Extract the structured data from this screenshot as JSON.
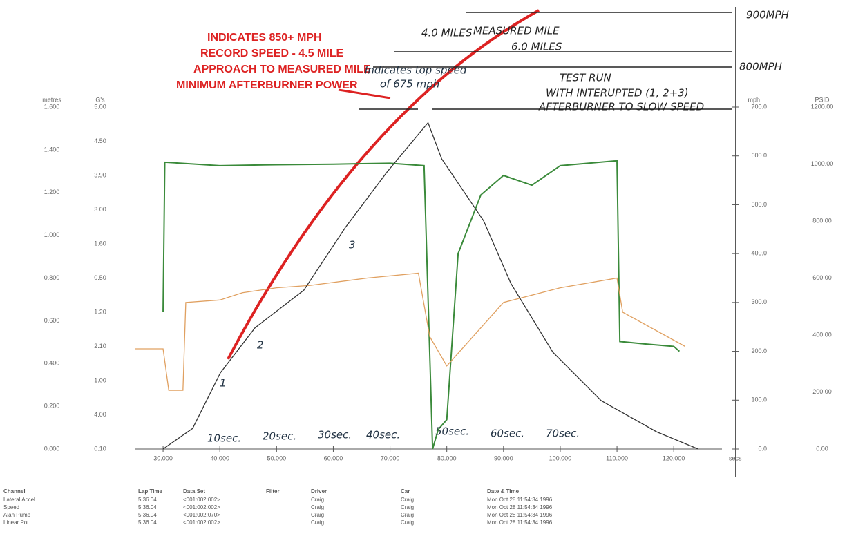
{
  "chart_data": {
    "type": "line",
    "xlim": [
      25,
      128.5
    ],
    "xticks": [
      {
        "value": 30,
        "label": "30.000"
      },
      {
        "value": 40,
        "label": "40.000"
      },
      {
        "value": 50,
        "label": "50.000"
      },
      {
        "value": 60,
        "label": "60.000"
      },
      {
        "value": 70,
        "label": "70.000"
      },
      {
        "value": 80,
        "label": "80.000"
      },
      {
        "value": 90,
        "label": "90.000"
      },
      {
        "value": 100,
        "label": "100.000"
      },
      {
        "value": 110,
        "label": "110.000"
      },
      {
        "value": 120,
        "label": "120.000"
      }
    ],
    "xlabel": "secs",
    "ylabel": "mph",
    "ylim": [
      0,
      700
    ],
    "yticks": [
      {
        "value": 0,
        "label": "0.0"
      },
      {
        "value": 100,
        "label": "100.0"
      },
      {
        "value": 200,
        "label": "200.0"
      },
      {
        "value": 300,
        "label": "300.0"
      },
      {
        "value": 400,
        "label": "400.0"
      },
      {
        "value": 500,
        "label": "500.0"
      },
      {
        "value": 600,
        "label": "600.0"
      },
      {
        "value": 700,
        "label": "700.0"
      }
    ],
    "extra_axes": [
      {
        "title": "metres",
        "labels": [
          "1.600",
          "1.400",
          "1.200",
          "1.000",
          "0.800",
          "0.600",
          "0.400",
          "0.200",
          "0.000"
        ]
      },
      {
        "title": "G's",
        "labels": [
          "5.00",
          "4.50",
          "3.90",
          "3.00",
          "1.60",
          "0.50",
          "1.20",
          "2.10",
          "1.00",
          "4.00",
          "0.10"
        ]
      },
      {
        "title": "PSID",
        "labels": [
          "1200.00",
          "1000.00",
          "800.00",
          "600.00",
          "400.00",
          "200.00",
          "0.00"
        ]
      }
    ],
    "series": [
      {
        "color": "#3a8a3a",
        "x": [
          30,
          30.3,
          40,
          50,
          60,
          70,
          76,
          77.5,
          78.5,
          80,
          82,
          86,
          90,
          95,
          100,
          110,
          110.5,
          115,
          120,
          121
        ],
        "values": [
          280,
          587,
          580,
          582,
          583,
          585,
          580,
          0,
          40,
          60,
          400,
          520,
          560,
          540,
          580,
          590,
          220,
          215,
          210,
          200
        ]
      },
      {
        "color": "#e0a060",
        "x": [
          25,
          29,
          30,
          31,
          33.5,
          34,
          40,
          44,
          50,
          56,
          66,
          75,
          77,
          80,
          90,
          100,
          110,
          111,
          122
        ],
        "values": [
          205,
          205,
          205,
          120,
          120,
          300,
          305,
          320,
          330,
          335,
          350,
          360,
          230,
          170,
          300,
          330,
          350,
          280,
          210
        ]
      },
      {
        "color": "#333",
        "x": [
          30,
          35.2,
          40.1,
          46.2,
          54.8,
          62.1,
          69.4,
          76.7,
          79.1,
          86.5,
          91.3,
          98.7,
          107.2,
          117,
          124.3
        ],
        "values": [
          0,
          42,
          156,
          248,
          325,
          453,
          566,
          668,
          594,
          467,
          339,
          198,
          99,
          35,
          0
        ]
      }
    ],
    "annotations": [
      "INDICATES 850+ MPH",
      "RECORD SPEED - 4.5 MILE",
      "APPROACH TO MEASURED MILE",
      "MINIMUM AFTERBURNER POWER",
      "Indicates top speed",
      "of 675 mph",
      "TEST RUN",
      "WITH INTERUPTED (1, 2+3)",
      "AFTERBURNER TO SLOW SPEED",
      "4.0 MILES",
      "MEASURED MILE",
      "6.0 MILES",
      "900MPH",
      "800MPH",
      "10sec.",
      "20sec.",
      "30sec.",
      "40sec.",
      "50sec.",
      "60sec.",
      "70sec.",
      "1",
      "2",
      "3"
    ]
  },
  "table": {
    "header": [
      "Channel",
      "Lap Time",
      "Data Set",
      "Filter",
      "Driver",
      "Car",
      "Date & Time"
    ],
    "rows": [
      [
        "Lateral Accel",
        "5:36.04",
        "<001:002:002>",
        "",
        "Craig",
        "Craig",
        "Mon Oct 28 11:54:34 1996"
      ],
      [
        "Speed",
        "5:36.04",
        "<001:002:002>",
        "",
        "Craig",
        "Craig",
        "Mon Oct 28 11:54:34 1996"
      ],
      [
        "Alan Pump",
        "5:36.04",
        "<001:002:070>",
        "",
        "Craig",
        "Craig",
        "Mon Oct 28 11:54:34 1996"
      ],
      [
        "Linear Pot",
        "5:36.04",
        "<001:002:002>",
        "",
        "Craig",
        "Craig",
        "Mon Oct 28 11:54:34 1996"
      ]
    ]
  }
}
